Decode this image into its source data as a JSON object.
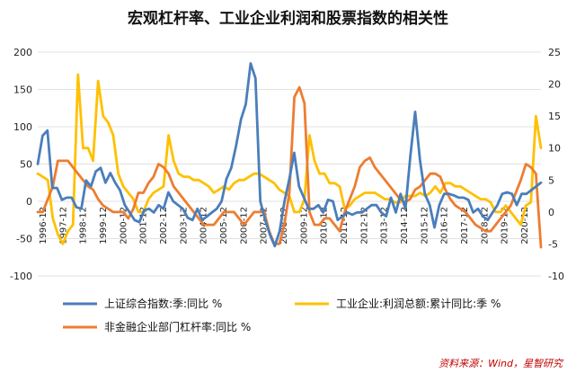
{
  "chart_data": {
    "type": "line",
    "title": "宏观杠杆率、工业企业利润和股票指数的相关性",
    "source": "资料来源：Wind，星智研究",
    "x_labels": [
      "1996-12",
      "1997-12",
      "1998-12",
      "1999-12",
      "2000-12",
      "2001-12",
      "2002-12",
      "2003-12",
      "2004-12",
      "2005-12",
      "2006-12",
      "2007-12",
      "2008-12",
      "2009-12",
      "2010-12",
      "2011-12",
      "2012-12",
      "2013-12",
      "2014-12",
      "2015-12",
      "2016-12",
      "2017-12",
      "2018-12",
      "2019-12",
      "2020-12"
    ],
    "left_axis": {
      "min": -100,
      "max": 200,
      "ticks": [
        "-100",
        "-50",
        "0",
        "50",
        "100",
        "150",
        "200"
      ]
    },
    "right_axis": {
      "min": -10,
      "max": 25,
      "ticks": [
        "-10",
        "-5",
        "0",
        "5",
        "10",
        "15",
        "20",
        "25"
      ]
    },
    "colors": {
      "sse": "#4a7ebb",
      "industrial": "#ffc000",
      "leverage": "#ed7d31"
    },
    "series": [
      {
        "name": "上证综合指数:季:同比 %",
        "axis": "left",
        "color": "#4a7ebb",
        "values": [
          50,
          88,
          95,
          18,
          18,
          2,
          5,
          5,
          -8,
          -10,
          28,
          20,
          40,
          45,
          25,
          38,
          25,
          15,
          -5,
          -15,
          -25,
          -28,
          -12,
          -10,
          -15,
          -5,
          -10,
          12,
          0,
          -5,
          -10,
          -22,
          -25,
          -10,
          -25,
          -20,
          -15,
          -10,
          0,
          30,
          45,
          75,
          110,
          130,
          185,
          165,
          0,
          -25,
          -45,
          -60,
          -40,
          0,
          30,
          65,
          20,
          5,
          -10,
          -10,
          -5,
          -15,
          2,
          0,
          -25,
          -20,
          -15,
          -18,
          -15,
          -15,
          -10,
          -5,
          -5,
          -15,
          -20,
          5,
          -15,
          10,
          -10,
          60,
          120,
          55,
          10,
          -5,
          -35,
          -5,
          10,
          10,
          8,
          5,
          5,
          2,
          -15,
          -10,
          -20,
          -25,
          -15,
          -5,
          10,
          12,
          10,
          -5,
          10,
          10,
          15,
          20,
          25
        ]
      },
      {
        "name": "工业企业:利润总额:累计同比:季 %",
        "axis": "right",
        "color": "#ffc000",
        "values": [
          6,
          5.5,
          5,
          -1,
          -3.5,
          -5,
          -3,
          -2,
          21.5,
          10,
          10,
          8,
          20.5,
          15,
          14,
          12,
          6,
          4,
          3,
          2,
          0,
          0,
          2,
          3,
          3.5,
          4,
          12,
          8,
          6,
          5.5,
          5.5,
          5,
          5,
          4.5,
          4,
          3,
          3.5,
          4,
          3.5,
          4.5,
          5,
          5,
          5.5,
          6,
          6,
          5.5,
          5,
          4.5,
          3.5,
          3,
          2.5,
          0,
          0,
          2,
          12,
          8,
          6,
          6,
          4.5,
          4.5,
          4,
          0.5,
          1,
          2,
          2.5,
          3,
          3,
          3,
          2.5,
          2,
          2,
          1.5,
          1.5,
          2.5,
          2.5,
          2.5,
          3,
          2.5,
          3,
          4,
          3,
          4.5,
          4.5,
          4,
          4,
          3.5,
          3,
          2.5,
          2,
          2,
          1.5,
          0,
          0,
          1,
          0,
          -1,
          -2,
          1,
          1.5,
          15,
          10
        ]
      },
      {
        "name": "非金融企业部门杠杆率:同比 %",
        "axis": "right",
        "color": "#ed7d31",
        "values": [
          0,
          0,
          2,
          4,
          8,
          8,
          8,
          7,
          6,
          5,
          4,
          3.5,
          2,
          1,
          0.5,
          0,
          0,
          0,
          -1,
          0.5,
          3,
          3,
          4.5,
          5.5,
          7.5,
          7,
          6,
          4,
          3,
          2,
          1,
          0,
          -1,
          -2,
          -2,
          -2,
          -1,
          0,
          0,
          0,
          -1,
          -2,
          -1,
          0,
          0,
          0,
          -3,
          -5,
          -5,
          -2,
          3,
          18,
          19.5,
          17,
          0,
          -2,
          -2,
          -1,
          -1,
          -2,
          -3,
          0,
          2,
          4,
          7,
          8,
          8.5,
          7,
          6,
          5,
          4,
          3,
          2,
          1.5,
          2,
          3.5,
          4,
          5,
          6,
          6,
          5.5,
          3.5,
          2,
          1,
          0.5,
          0,
          -1,
          -2,
          -2.5,
          -3,
          -3,
          -2,
          -1,
          0,
          1,
          3,
          5,
          7.5,
          7,
          6,
          -5.5
        ]
      }
    ]
  }
}
